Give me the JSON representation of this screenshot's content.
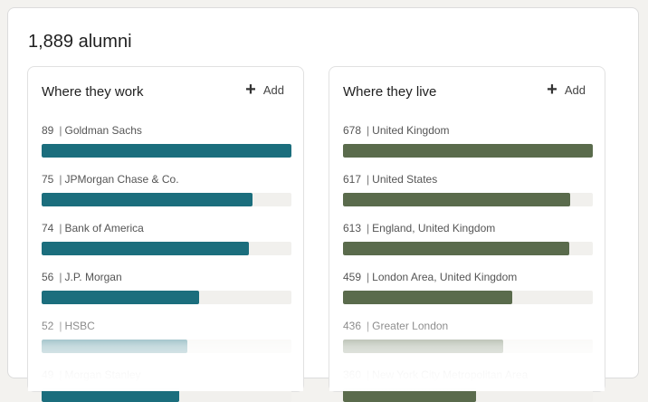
{
  "header": {
    "alumni_count": "1,889 alumni"
  },
  "add_label": "Add",
  "work": {
    "title": "Where they work",
    "color": "#1b6e7d",
    "max": 89,
    "items": [
      {
        "count": "89",
        "name": "Goldman Sachs",
        "value": 89
      },
      {
        "count": "75",
        "name": "JPMorgan Chase & Co.",
        "value": 75
      },
      {
        "count": "74",
        "name": "Bank of America",
        "value": 74
      },
      {
        "count": "56",
        "name": "J.P. Morgan",
        "value": 56
      },
      {
        "count": "52",
        "name": "HSBC",
        "value": 52
      },
      {
        "count": "49",
        "name": "Morgan Stanley",
        "value": 49
      }
    ]
  },
  "live": {
    "title": "Where they live",
    "color": "#5a6b4c",
    "max": 678,
    "items": [
      {
        "count": "678",
        "name": "United Kingdom",
        "value": 678
      },
      {
        "count": "617",
        "name": "United States",
        "value": 617
      },
      {
        "count": "613",
        "name": "England, United Kingdom",
        "value": 613
      },
      {
        "count": "459",
        "name": "London Area, United Kingdom",
        "value": 459
      },
      {
        "count": "436",
        "name": "Greater London",
        "value": 436
      },
      {
        "count": "360",
        "name": "New York City Metropolitan Area",
        "value": 360
      }
    ]
  }
}
